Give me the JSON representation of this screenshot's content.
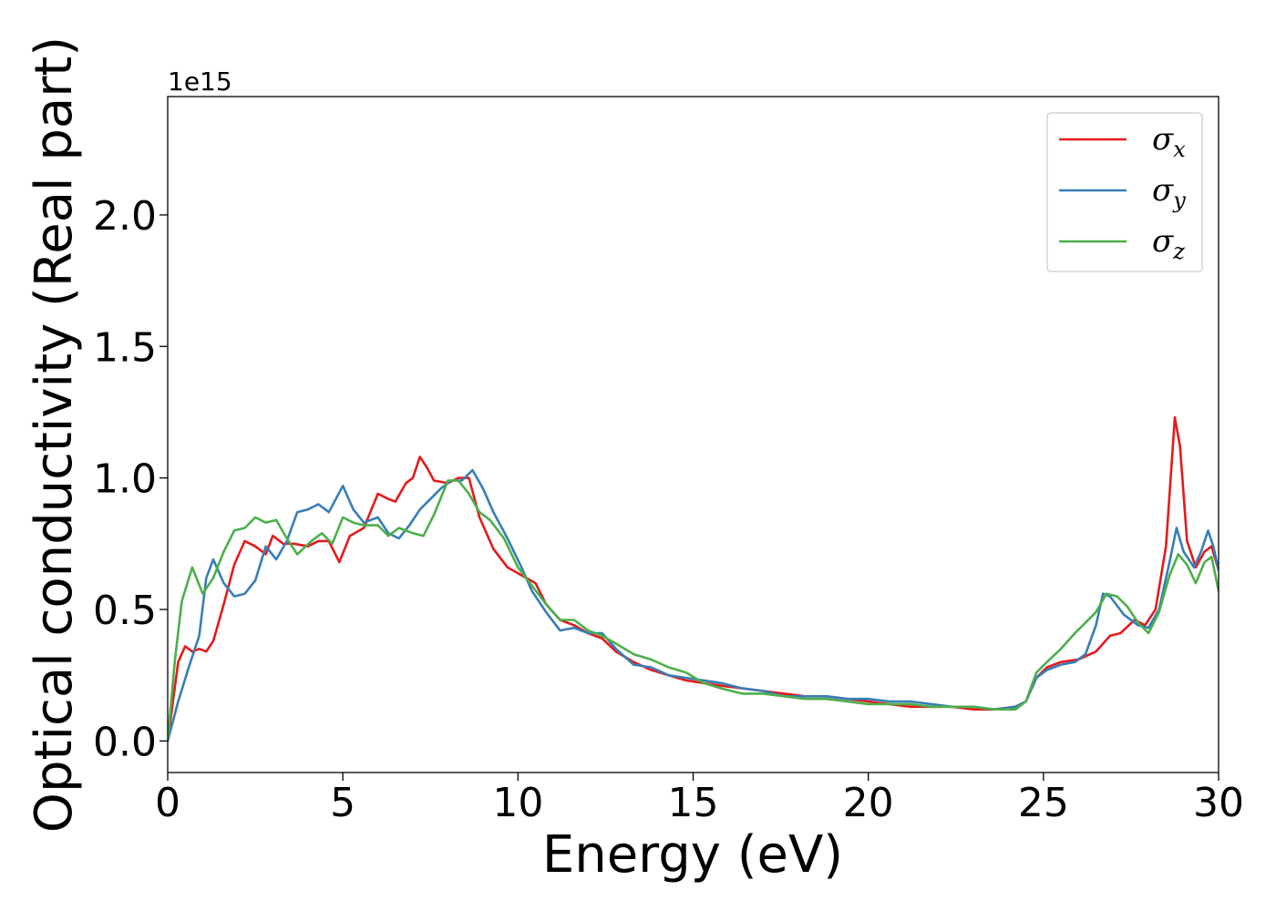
{
  "chart_data": {
    "type": "line",
    "xlabel": "Energy (eV)",
    "ylabel": "Optical conductivity (Real part)",
    "y_offset_text": "1e15",
    "xlim": [
      0,
      30
    ],
    "ylim": [
      -0.12,
      2.45
    ],
    "x_ticks": [
      0,
      5,
      10,
      15,
      20,
      25,
      30
    ],
    "x_tick_labels": [
      "0",
      "5",
      "10",
      "15",
      "20",
      "25",
      "30"
    ],
    "y_ticks": [
      0.0,
      0.5,
      1.0,
      1.5,
      2.0
    ],
    "y_tick_labels": [
      "0.0",
      "0.5",
      "1.0",
      "1.5",
      "2.0"
    ],
    "grid": false,
    "legend_position": "top-right",
    "series": [
      {
        "name": "σx",
        "symbol": "σ",
        "subscript": "x",
        "color": "#e41a1c",
        "points": [
          [
            0,
            0.0
          ],
          [
            0.3,
            0.3
          ],
          [
            0.5,
            0.36
          ],
          [
            0.7,
            0.34
          ],
          [
            0.9,
            0.35
          ],
          [
            1.1,
            0.34
          ],
          [
            1.3,
            0.38
          ],
          [
            1.6,
            0.52
          ],
          [
            1.9,
            0.67
          ],
          [
            2.2,
            0.76
          ],
          [
            2.5,
            0.74
          ],
          [
            2.8,
            0.71
          ],
          [
            3.0,
            0.78
          ],
          [
            3.3,
            0.75
          ],
          [
            3.6,
            0.75
          ],
          [
            4.0,
            0.74
          ],
          [
            4.3,
            0.76
          ],
          [
            4.6,
            0.76
          ],
          [
            4.9,
            0.68
          ],
          [
            5.2,
            0.78
          ],
          [
            5.6,
            0.81
          ],
          [
            6.0,
            0.94
          ],
          [
            6.3,
            0.92
          ],
          [
            6.5,
            0.91
          ],
          [
            6.8,
            0.98
          ],
          [
            7.0,
            1.0
          ],
          [
            7.2,
            1.08
          ],
          [
            7.4,
            1.04
          ],
          [
            7.6,
            0.99
          ],
          [
            8.0,
            0.98
          ],
          [
            8.3,
            1.0
          ],
          [
            8.6,
            1.0
          ],
          [
            8.9,
            0.85
          ],
          [
            9.3,
            0.73
          ],
          [
            9.7,
            0.66
          ],
          [
            10.1,
            0.63
          ],
          [
            10.5,
            0.6
          ],
          [
            10.8,
            0.52
          ],
          [
            11.2,
            0.46
          ],
          [
            11.6,
            0.44
          ],
          [
            12.0,
            0.41
          ],
          [
            12.4,
            0.39
          ],
          [
            12.8,
            0.34
          ],
          [
            13.3,
            0.3
          ],
          [
            13.8,
            0.27
          ],
          [
            14.3,
            0.25
          ],
          [
            14.8,
            0.23
          ],
          [
            15.3,
            0.22
          ],
          [
            15.8,
            0.21
          ],
          [
            16.4,
            0.2
          ],
          [
            17.0,
            0.19
          ],
          [
            17.6,
            0.18
          ],
          [
            18.2,
            0.17
          ],
          [
            18.8,
            0.17
          ],
          [
            19.4,
            0.16
          ],
          [
            20.0,
            0.15
          ],
          [
            20.6,
            0.14
          ],
          [
            21.2,
            0.13
          ],
          [
            21.8,
            0.13
          ],
          [
            22.4,
            0.13
          ],
          [
            23.0,
            0.12
          ],
          [
            23.6,
            0.12
          ],
          [
            24.2,
            0.13
          ],
          [
            24.5,
            0.15
          ],
          [
            24.8,
            0.24
          ],
          [
            25.1,
            0.28
          ],
          [
            25.5,
            0.3
          ],
          [
            26.0,
            0.31
          ],
          [
            26.5,
            0.34
          ],
          [
            26.9,
            0.4
          ],
          [
            27.2,
            0.41
          ],
          [
            27.6,
            0.46
          ],
          [
            27.9,
            0.44
          ],
          [
            28.2,
            0.5
          ],
          [
            28.5,
            0.74
          ],
          [
            28.75,
            1.23
          ],
          [
            28.9,
            1.12
          ],
          [
            29.1,
            0.76
          ],
          [
            29.35,
            0.66
          ],
          [
            29.6,
            0.72
          ],
          [
            29.8,
            0.74
          ],
          [
            30.0,
            0.65
          ]
        ]
      },
      {
        "name": "σy",
        "symbol": "σ",
        "subscript": "y",
        "color": "#377eb8",
        "points": [
          [
            0,
            0.0
          ],
          [
            0.3,
            0.15
          ],
          [
            0.6,
            0.28
          ],
          [
            0.9,
            0.4
          ],
          [
            1.1,
            0.62
          ],
          [
            1.3,
            0.69
          ],
          [
            1.6,
            0.6
          ],
          [
            1.9,
            0.55
          ],
          [
            2.2,
            0.56
          ],
          [
            2.5,
            0.61
          ],
          [
            2.8,
            0.74
          ],
          [
            3.1,
            0.69
          ],
          [
            3.4,
            0.76
          ],
          [
            3.7,
            0.87
          ],
          [
            4.0,
            0.88
          ],
          [
            4.3,
            0.9
          ],
          [
            4.6,
            0.87
          ],
          [
            5.0,
            0.97
          ],
          [
            5.3,
            0.88
          ],
          [
            5.6,
            0.83
          ],
          [
            6.0,
            0.85
          ],
          [
            6.3,
            0.79
          ],
          [
            6.6,
            0.77
          ],
          [
            6.9,
            0.82
          ],
          [
            7.2,
            0.88
          ],
          [
            7.5,
            0.92
          ],
          [
            7.8,
            0.96
          ],
          [
            8.1,
            0.99
          ],
          [
            8.4,
            0.99
          ],
          [
            8.7,
            1.03
          ],
          [
            9.0,
            0.96
          ],
          [
            9.3,
            0.87
          ],
          [
            9.7,
            0.77
          ],
          [
            10.1,
            0.66
          ],
          [
            10.4,
            0.57
          ],
          [
            10.8,
            0.49
          ],
          [
            11.2,
            0.42
          ],
          [
            11.6,
            0.43
          ],
          [
            12.0,
            0.41
          ],
          [
            12.4,
            0.41
          ],
          [
            12.8,
            0.35
          ],
          [
            13.3,
            0.29
          ],
          [
            13.8,
            0.28
          ],
          [
            14.3,
            0.25
          ],
          [
            14.8,
            0.24
          ],
          [
            15.3,
            0.23
          ],
          [
            15.8,
            0.22
          ],
          [
            16.4,
            0.2
          ],
          [
            17.0,
            0.19
          ],
          [
            17.6,
            0.17
          ],
          [
            18.2,
            0.17
          ],
          [
            18.8,
            0.17
          ],
          [
            19.4,
            0.16
          ],
          [
            20.0,
            0.16
          ],
          [
            20.6,
            0.15
          ],
          [
            21.2,
            0.15
          ],
          [
            21.8,
            0.14
          ],
          [
            22.4,
            0.13
          ],
          [
            23.0,
            0.13
          ],
          [
            23.6,
            0.12
          ],
          [
            24.2,
            0.13
          ],
          [
            24.5,
            0.15
          ],
          [
            24.8,
            0.24
          ],
          [
            25.1,
            0.27
          ],
          [
            25.5,
            0.29
          ],
          [
            25.9,
            0.3
          ],
          [
            26.2,
            0.33
          ],
          [
            26.5,
            0.44
          ],
          [
            26.7,
            0.56
          ],
          [
            26.9,
            0.55
          ],
          [
            27.3,
            0.48
          ],
          [
            27.7,
            0.44
          ],
          [
            28.0,
            0.43
          ],
          [
            28.3,
            0.5
          ],
          [
            28.6,
            0.68
          ],
          [
            28.8,
            0.81
          ],
          [
            29.0,
            0.72
          ],
          [
            29.3,
            0.66
          ],
          [
            29.5,
            0.72
          ],
          [
            29.7,
            0.8
          ],
          [
            29.85,
            0.74
          ],
          [
            30.0,
            0.65
          ]
        ]
      },
      {
        "name": "σz",
        "symbol": "σ",
        "subscript": "z",
        "color": "#4daf4a",
        "points": [
          [
            0,
            0.0
          ],
          [
            0.2,
            0.3
          ],
          [
            0.4,
            0.53
          ],
          [
            0.7,
            0.66
          ],
          [
            1.0,
            0.56
          ],
          [
            1.3,
            0.62
          ],
          [
            1.6,
            0.72
          ],
          [
            1.9,
            0.8
          ],
          [
            2.2,
            0.81
          ],
          [
            2.5,
            0.85
          ],
          [
            2.8,
            0.83
          ],
          [
            3.1,
            0.84
          ],
          [
            3.4,
            0.77
          ],
          [
            3.7,
            0.71
          ],
          [
            4.1,
            0.76
          ],
          [
            4.4,
            0.79
          ],
          [
            4.7,
            0.75
          ],
          [
            5.0,
            0.85
          ],
          [
            5.3,
            0.83
          ],
          [
            5.6,
            0.82
          ],
          [
            6.0,
            0.82
          ],
          [
            6.3,
            0.78
          ],
          [
            6.6,
            0.81
          ],
          [
            7.0,
            0.79
          ],
          [
            7.3,
            0.78
          ],
          [
            7.6,
            0.86
          ],
          [
            8.0,
            0.99
          ],
          [
            8.3,
            0.99
          ],
          [
            8.6,
            0.94
          ],
          [
            8.9,
            0.87
          ],
          [
            9.2,
            0.84
          ],
          [
            9.6,
            0.77
          ],
          [
            10.0,
            0.66
          ],
          [
            10.4,
            0.59
          ],
          [
            10.8,
            0.52
          ],
          [
            11.2,
            0.46
          ],
          [
            11.6,
            0.46
          ],
          [
            12.0,
            0.42
          ],
          [
            12.4,
            0.4
          ],
          [
            12.8,
            0.37
          ],
          [
            13.3,
            0.33
          ],
          [
            13.8,
            0.31
          ],
          [
            14.3,
            0.28
          ],
          [
            14.8,
            0.26
          ],
          [
            15.3,
            0.22
          ],
          [
            15.8,
            0.2
          ],
          [
            16.4,
            0.18
          ],
          [
            17.0,
            0.18
          ],
          [
            17.6,
            0.17
          ],
          [
            18.2,
            0.16
          ],
          [
            18.8,
            0.16
          ],
          [
            19.4,
            0.15
          ],
          [
            20.0,
            0.14
          ],
          [
            20.6,
            0.14
          ],
          [
            21.2,
            0.14
          ],
          [
            21.8,
            0.13
          ],
          [
            22.4,
            0.13
          ],
          [
            23.0,
            0.13
          ],
          [
            23.6,
            0.12
          ],
          [
            24.2,
            0.12
          ],
          [
            24.5,
            0.15
          ],
          [
            24.8,
            0.26
          ],
          [
            25.1,
            0.3
          ],
          [
            25.5,
            0.35
          ],
          [
            25.9,
            0.41
          ],
          [
            26.2,
            0.45
          ],
          [
            26.5,
            0.49
          ],
          [
            26.8,
            0.56
          ],
          [
            27.1,
            0.55
          ],
          [
            27.4,
            0.51
          ],
          [
            27.7,
            0.45
          ],
          [
            28.0,
            0.41
          ],
          [
            28.3,
            0.49
          ],
          [
            28.6,
            0.63
          ],
          [
            28.85,
            0.71
          ],
          [
            29.1,
            0.67
          ],
          [
            29.35,
            0.6
          ],
          [
            29.6,
            0.68
          ],
          [
            29.8,
            0.7
          ],
          [
            30.0,
            0.57
          ]
        ]
      }
    ]
  }
}
